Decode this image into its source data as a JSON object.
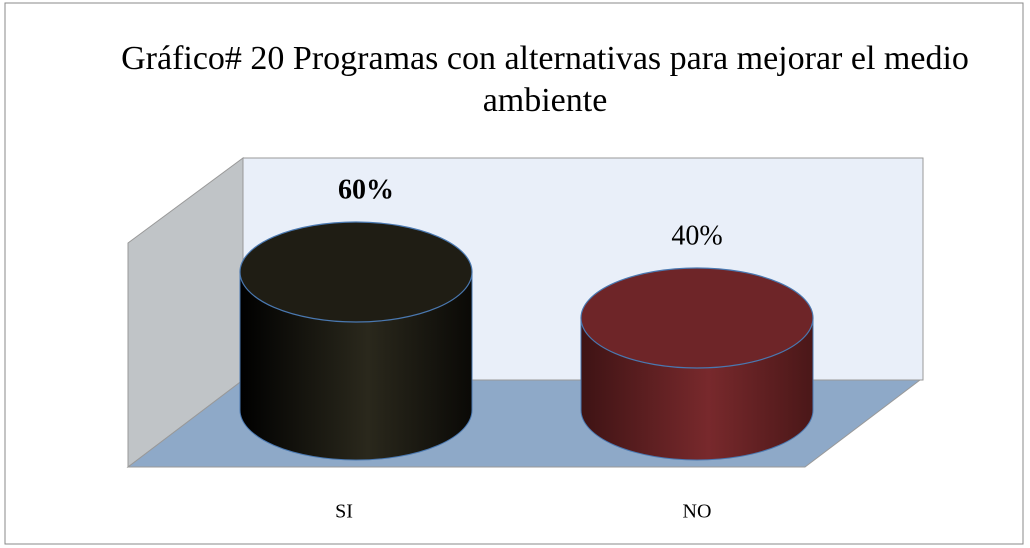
{
  "chart_data": {
    "type": "cylinder",
    "title": "Gráfico# 20 Programas con alternativas para mejorar el medio ambiente",
    "categories": [
      "SI",
      "NO"
    ],
    "values": [
      60,
      40
    ],
    "value_labels": [
      "60%",
      "40%"
    ],
    "colors": [
      "#1f1d14",
      "#6e2528"
    ]
  }
}
